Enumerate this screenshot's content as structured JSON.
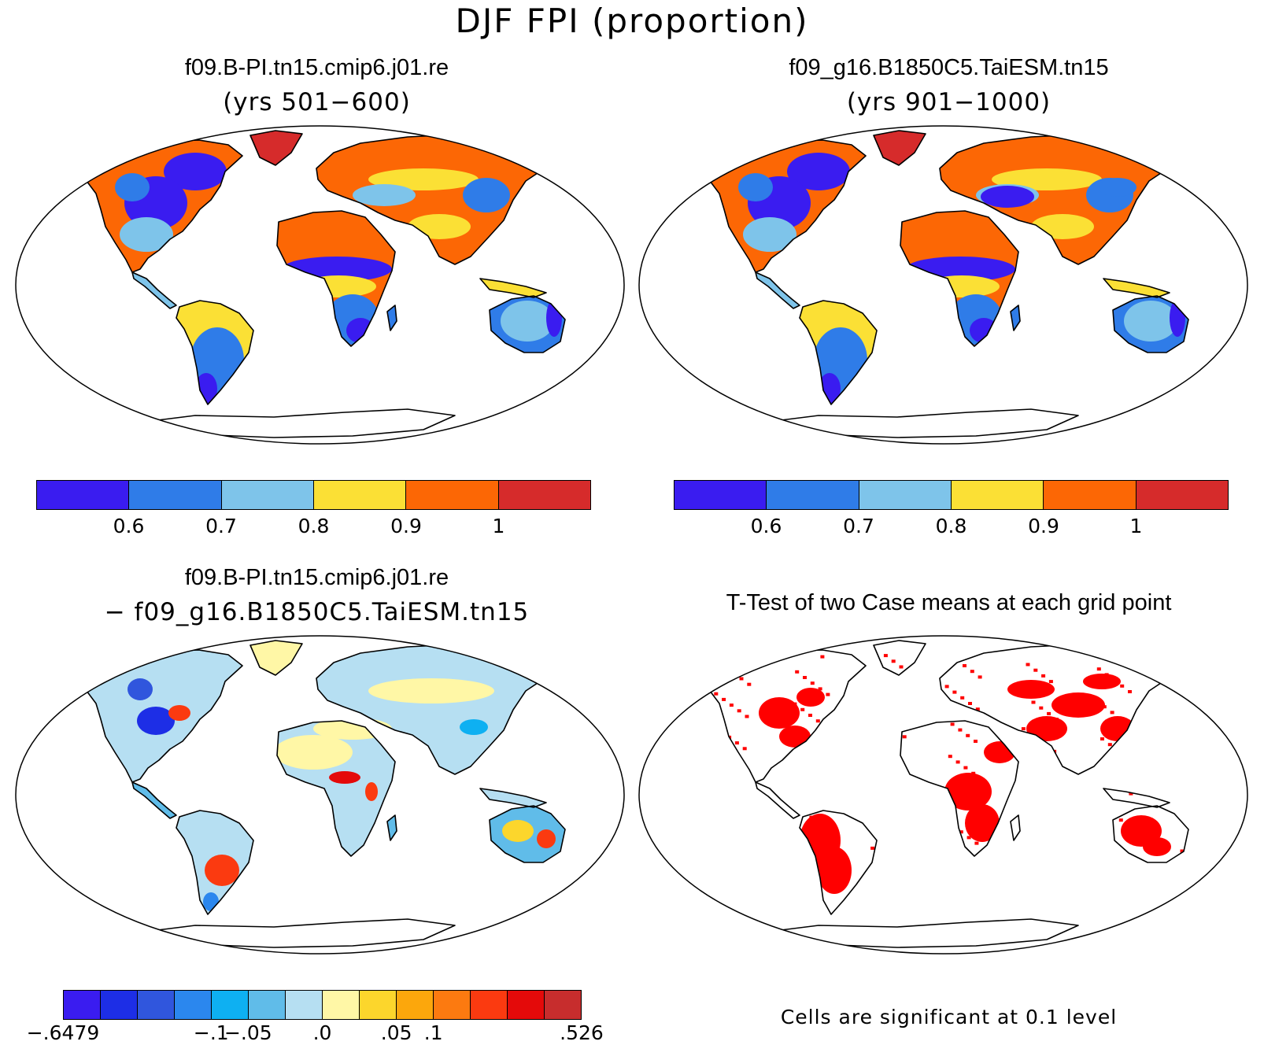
{
  "page_title": "DJF FPI (proportion)",
  "panels": [
    {
      "title": "f09.B-PI.tn15.cmip6.j01.re",
      "subtitle": "(yrs 501−600)",
      "colorbar": {
        "colors": [
          "#3a1cf0",
          "#2f7ce8",
          "#7ec4ea",
          "#fbe035",
          "#fc6705",
          "#d62b2b"
        ],
        "labels": [
          "0.6",
          "0.7",
          "0.8",
          "0.9",
          "1"
        ]
      }
    },
    {
      "title": "f09_g16.B1850C5.TaiESM.tn15",
      "subtitle": "(yrs 901−1000)",
      "colorbar": {
        "colors": [
          "#3a1cf0",
          "#2f7ce8",
          "#7ec4ea",
          "#fbe035",
          "#fc6705",
          "#d62b2b"
        ],
        "labels": [
          "0.6",
          "0.7",
          "0.8",
          "0.9",
          "1"
        ]
      }
    },
    {
      "title": "f09.B-PI.tn15.cmip6.j01.re",
      "subtitle": "− f09_g16.B1850C5.TaiESM.tn15",
      "colorbar": {
        "colors": [
          "#3a1cf0",
          "#1d2ee6",
          "#3056dd",
          "#2b87ee",
          "#0eb0f2",
          "#60bce9",
          "#b6dff2",
          "#fff7a6",
          "#fcd62c",
          "#fca70c",
          "#fc7a10",
          "#fb3a10",
          "#e40a0a",
          "#c72d2d"
        ],
        "labels": [
          "−.6479",
          "−.1",
          "−.05",
          ".0",
          ".05",
          ".1",
          ".526"
        ]
      }
    },
    {
      "title": "T-Test of two Case means at each grid point",
      "note": "Cells are significant at 0.1 level",
      "significance_color": "#ff0000"
    }
  ]
}
